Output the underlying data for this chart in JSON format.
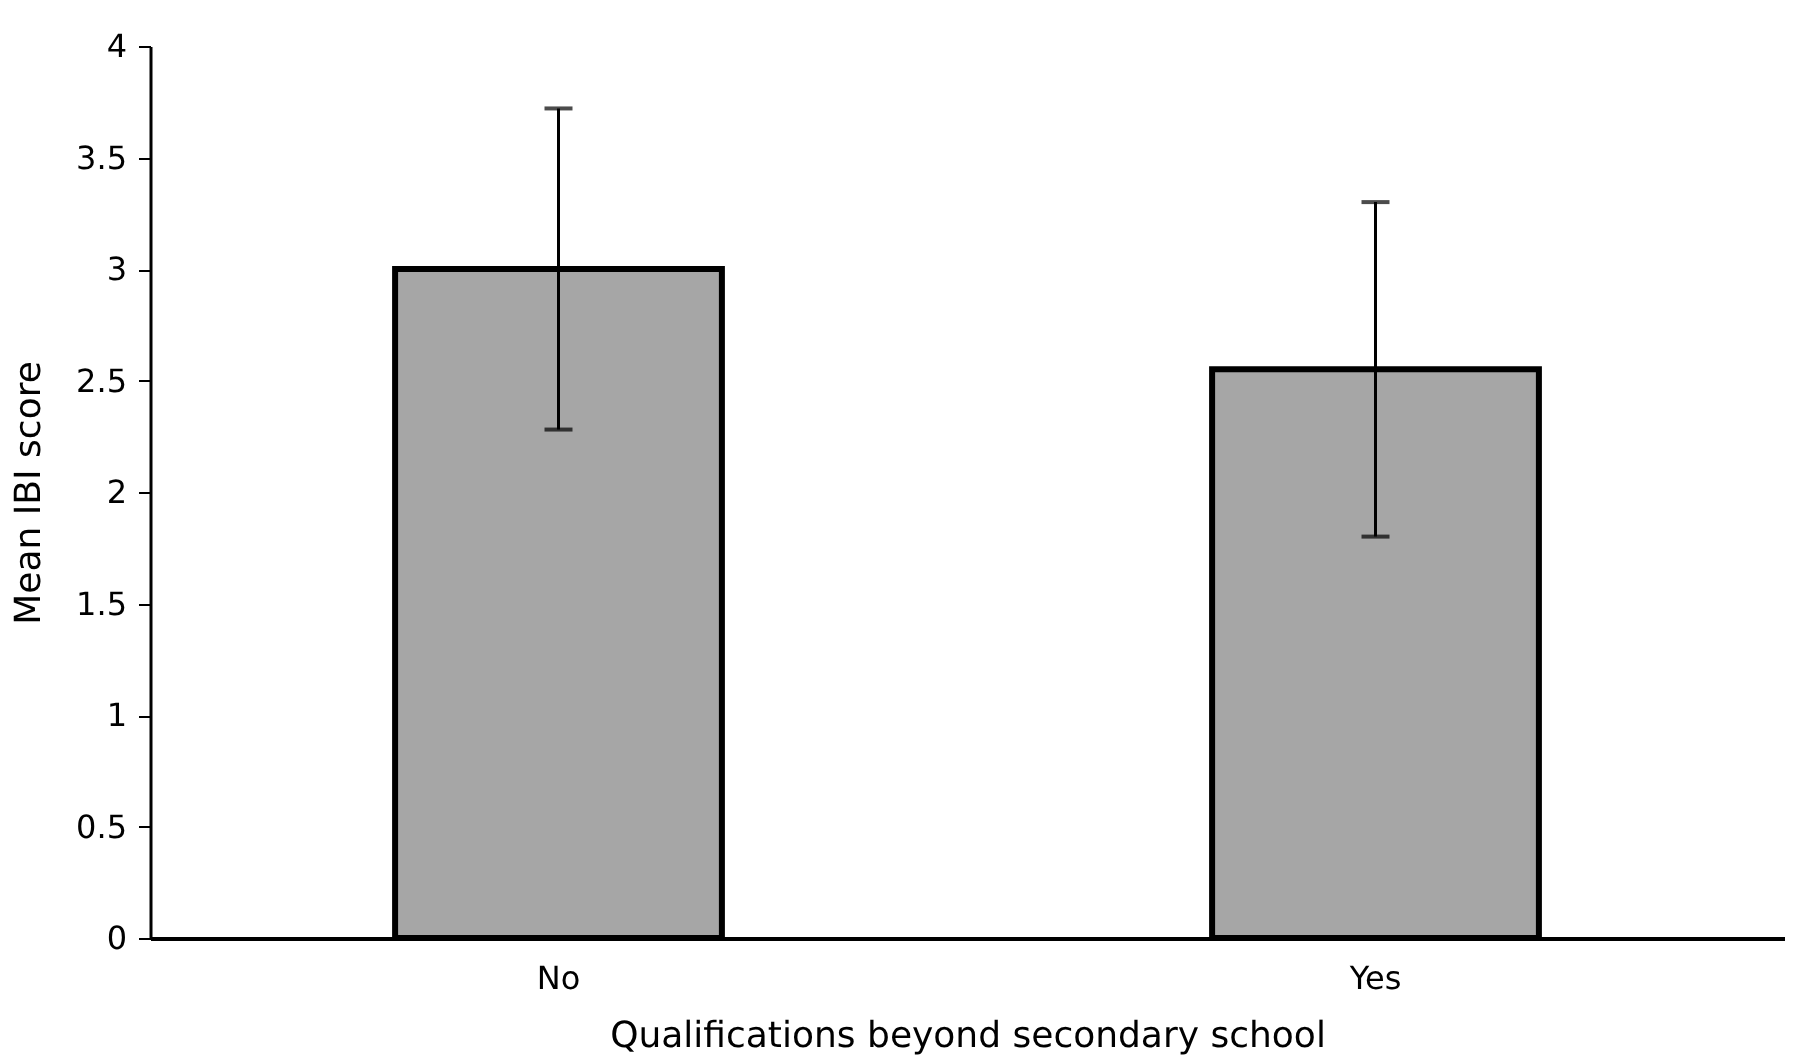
{
  "chart_data": {
    "type": "bar",
    "xlabel": "Qualifications beyond secondary school",
    "ylabel": "Mean IBI score",
    "categories": [
      "No",
      "Yes"
    ],
    "values": [
      3.0,
      2.55
    ],
    "errors": [
      0.72,
      0.75
    ],
    "color": "#a6a6a6",
    "ylim": [
      0,
      4
    ],
    "yticks": [
      0,
      0.5,
      1,
      1.5,
      2,
      2.5,
      3,
      3.5,
      4
    ],
    "grid": false
  }
}
